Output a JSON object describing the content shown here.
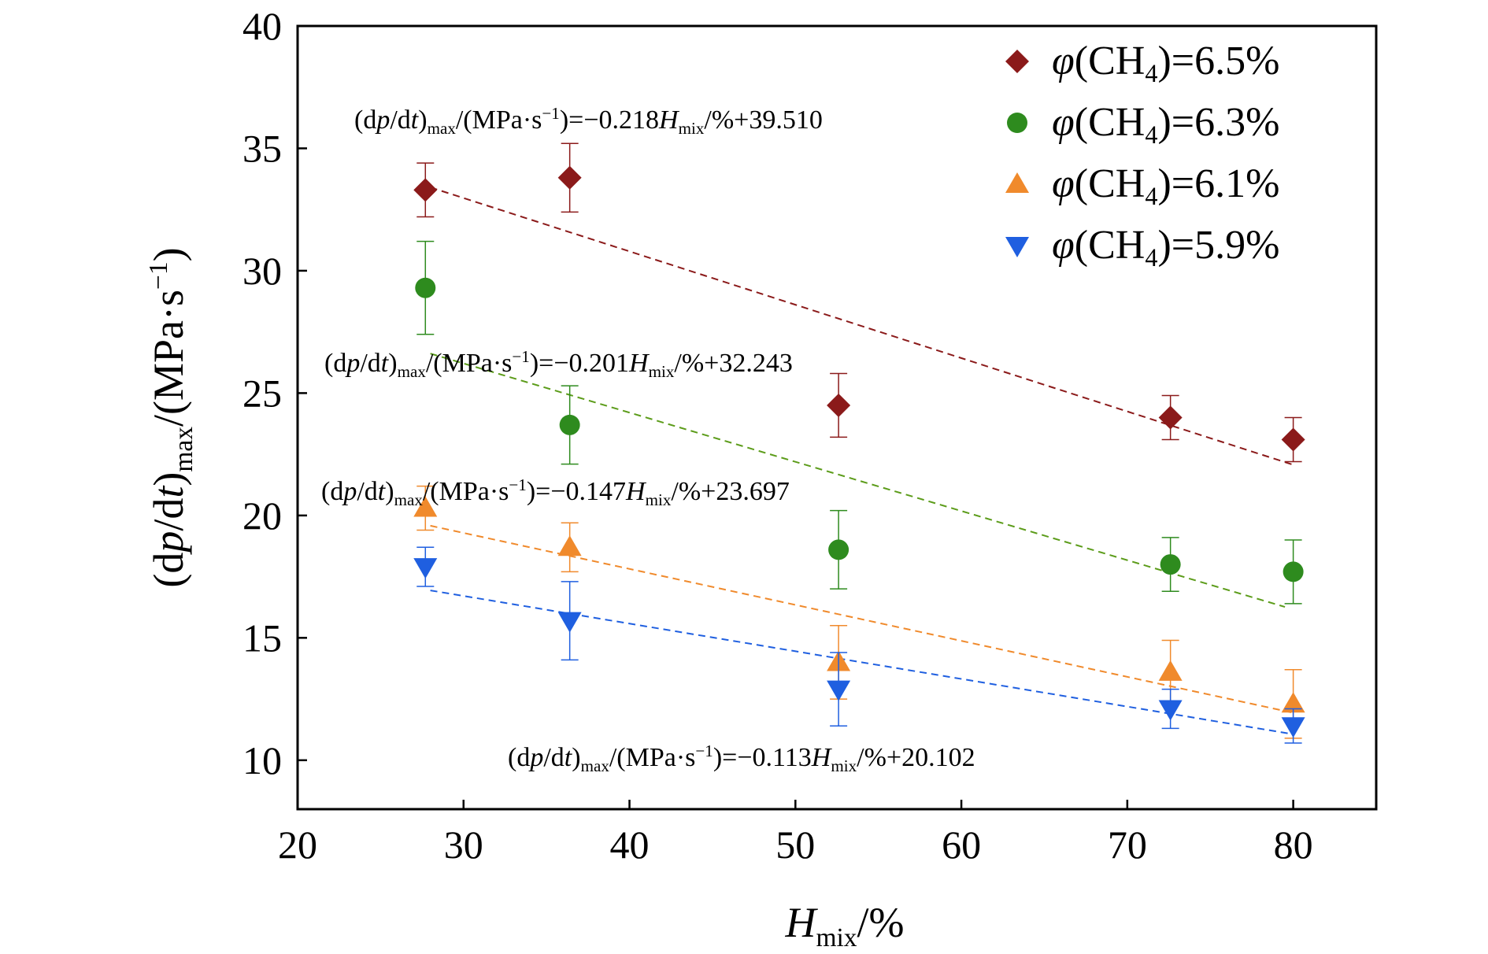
{
  "chart_data": {
    "type": "scatter",
    "xlabel": {
      "main": "H",
      "sub": "mix",
      "tail": "/%"
    },
    "ylabel": {
      "p1": "(d",
      "p2": "p",
      "p3": "/d",
      "p4": "t",
      "p5": ")",
      "sub": "max",
      "p6": "/(MPa·s",
      "sup": "−1",
      "p7": ")"
    },
    "xlim": [
      20,
      85
    ],
    "ylim": [
      8,
      40
    ],
    "xticks": [
      20,
      30,
      40,
      50,
      60,
      70,
      80
    ],
    "yticks": [
      10,
      15,
      20,
      25,
      30,
      35,
      40
    ],
    "legend_position": "top-right",
    "series": [
      {
        "name": "φ(CH4)=6.5%",
        "legend": {
          "phi": "φ",
          "pre": "(CH",
          "sub": "4",
          "post": ")=6.5%"
        },
        "marker": "diamond",
        "color": "#8B1A1A",
        "x": [
          27.7,
          36.4,
          52.6,
          72.6,
          80.0
        ],
        "y": [
          33.3,
          33.8,
          24.5,
          24.0,
          23.1
        ],
        "err": [
          1.1,
          1.4,
          1.3,
          0.9,
          0.9
        ],
        "fit": {
          "slope": -0.218,
          "intercept": 39.51,
          "x_range": [
            28,
            80
          ],
          "color": "#8B1A1A"
        },
        "equation": {
          "a": "(d",
          "b": "p",
          "c": "/d",
          "d": "t",
          "e": ")",
          "f": "max",
          "g": "/(MPa·s",
          "h": "−1",
          "i": ")=−0.218",
          "j": "H",
          "k": "mix",
          "l": "/%+39.510"
        }
      },
      {
        "name": "φ(CH4)=6.3%",
        "legend": {
          "phi": "φ",
          "pre": "(CH",
          "sub": "4",
          "post": ")=6.3%"
        },
        "marker": "circle",
        "color": "#2E8B1E",
        "x": [
          27.7,
          36.4,
          52.6,
          72.6,
          80.0
        ],
        "y": [
          29.3,
          23.7,
          18.6,
          18.0,
          17.7
        ],
        "err": [
          1.9,
          1.6,
          1.6,
          1.1,
          1.3
        ],
        "fit": {
          "slope": -0.201,
          "intercept": 32.243,
          "x_range": [
            28,
            79.5
          ],
          "color": "#5C9C1A"
        },
        "equation": {
          "a": "(d",
          "b": "p",
          "c": "/d",
          "d": "t",
          "e": ")",
          "f": "max",
          "g": "/(MPa·s",
          "h": "−1",
          "i": ")=−0.201",
          "j": "H",
          "k": "mix",
          "l": "/%+32.243"
        }
      },
      {
        "name": "φ(CH4)=6.1%",
        "legend": {
          "phi": "φ",
          "pre": "(CH",
          "sub": "4",
          "post": ")=6.1%"
        },
        "marker": "triangle-up",
        "color": "#F08A2C",
        "x": [
          27.7,
          36.4,
          52.6,
          72.6,
          80.0
        ],
        "y": [
          20.3,
          18.7,
          14.0,
          13.6,
          12.3
        ],
        "err": [
          0.9,
          1.0,
          1.5,
          1.3,
          1.4
        ],
        "fit": {
          "slope": -0.147,
          "intercept": 23.697,
          "x_range": [
            28,
            80
          ],
          "color": "#F08A2C"
        },
        "equation": {
          "a": "(d",
          "b": "p",
          "c": "/d",
          "d": "t",
          "e": ")",
          "f": "max",
          "g": "/(MPa·s",
          "h": "−1",
          "i": ")=−0.147",
          "j": "H",
          "k": "mix",
          "l": "/%+23.697"
        }
      },
      {
        "name": "φ(CH4)=5.9%",
        "legend": {
          "phi": "φ",
          "pre": "(CH",
          "sub": "4",
          "post": ")=5.9%"
        },
        "marker": "triangle-down",
        "color": "#1F5FE0",
        "x": [
          27.7,
          36.4,
          52.6,
          72.6,
          80.0
        ],
        "y": [
          17.9,
          15.7,
          12.9,
          12.1,
          11.4
        ],
        "err": [
          0.8,
          1.6,
          1.5,
          0.8,
          0.7
        ],
        "fit": {
          "slope": -0.113,
          "intercept": 20.102,
          "x_range": [
            28,
            80
          ],
          "color": "#1F5FE0"
        },
        "equation": {
          "a": "(d",
          "b": "p",
          "c": "/d",
          "d": "t",
          "e": ")",
          "f": "max",
          "g": "/(MPa·s",
          "h": "−1",
          "i": ")=−0.113",
          "j": "H",
          "k": "mix",
          "l": "/%+20.102"
        }
      }
    ]
  }
}
